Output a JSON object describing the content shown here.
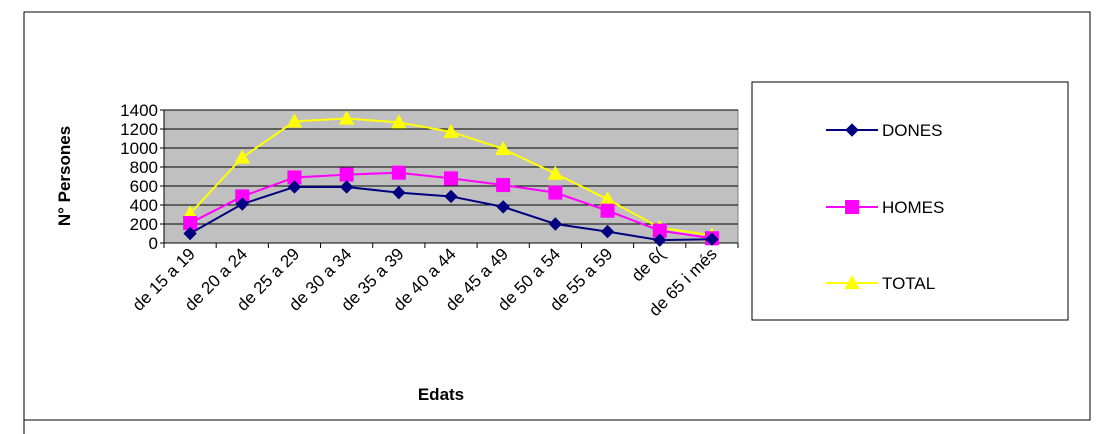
{
  "chart_data": {
    "type": "line",
    "title": "",
    "xlabel": "Edats",
    "ylabel": "N° Persones",
    "ylim": [
      0,
      1400
    ],
    "yticks": [
      "0",
      "200",
      "400",
      "600",
      "800",
      "1000",
      "1200",
      "1400"
    ],
    "categories": [
      "de 15 a 19",
      "de 20 a 24",
      "de 25 a 29",
      "de 30 a 34",
      "de 35 a 39",
      "de 40 a 44",
      "de 45 a 49",
      "de 50 a 54",
      "de 55 a 59",
      "de 60 a 64",
      "de 65 i més"
    ],
    "category_labels_shown": [
      "de 15 a 19",
      "de 20 a 24",
      "de 25 a 29",
      "de 30 a 34",
      "de 35 a 39",
      "de 40 a 44",
      "de 45 a 49",
      "de 50 a 54",
      "de 55 a 59",
      "de 6(",
      "de 65 i més"
    ],
    "grid": true,
    "plot_background": "#c0c0c0",
    "legend_placement": "right",
    "series": [
      {
        "name": "DONES",
        "color": "#000080",
        "marker": "diamond",
        "values": [
          100,
          410,
          590,
          590,
          530,
          490,
          380,
          200,
          120,
          30,
          40
        ]
      },
      {
        "name": "HOMES",
        "color": "#ff00ff",
        "marker": "square",
        "values": [
          210,
          490,
          690,
          720,
          740,
          680,
          610,
          530,
          340,
          130,
          50
        ]
      },
      {
        "name": "TOTAL",
        "color": "#ffff00",
        "marker": "triangle",
        "values": [
          310,
          900,
          1280,
          1310,
          1270,
          1170,
          990,
          730,
          460,
          160,
          80
        ]
      }
    ]
  }
}
